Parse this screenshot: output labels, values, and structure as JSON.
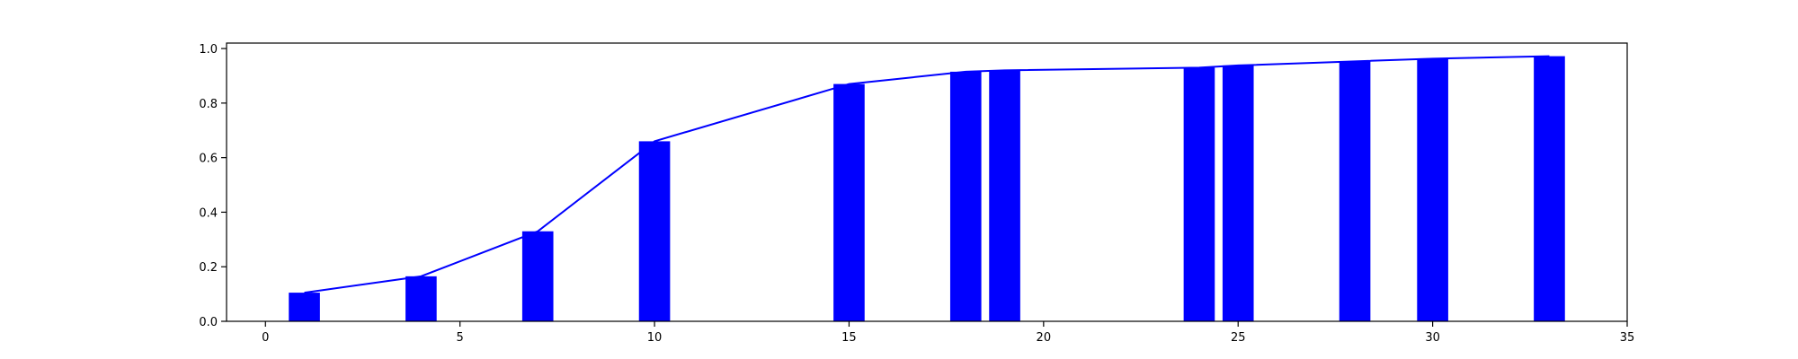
{
  "chart_data": {
    "type": "bar",
    "x": [
      1,
      4,
      7,
      10,
      15,
      18,
      19,
      24,
      25,
      28,
      30,
      33
    ],
    "values": [
      0.105,
      0.165,
      0.33,
      0.66,
      0.87,
      0.915,
      0.92,
      0.93,
      0.938,
      0.953,
      0.963,
      0.972
    ],
    "bar_width": 0.8,
    "line_values": [
      0.105,
      0.165,
      0.33,
      0.66,
      0.87,
      0.915,
      0.92,
      0.93,
      0.938,
      0.953,
      0.963,
      0.972
    ],
    "title": "",
    "xlabel": "",
    "ylabel": "",
    "xlim": [
      -1,
      35
    ],
    "ylim": [
      0,
      1.02
    ],
    "xticks": [
      0,
      5,
      10,
      15,
      20,
      25,
      30,
      35
    ],
    "yticks": [
      0.0,
      0.2,
      0.4,
      0.6,
      0.8,
      1.0
    ],
    "xtick_labels": [
      "0",
      "5",
      "10",
      "15",
      "20",
      "25",
      "30",
      "35"
    ],
    "ytick_labels": [
      "0.0",
      "0.2",
      "0.4",
      "0.6",
      "0.8",
      "1.0"
    ],
    "grid": false,
    "colors": {
      "bar": "#0000ff",
      "line": "#0000ff",
      "axis": "#000000"
    }
  }
}
